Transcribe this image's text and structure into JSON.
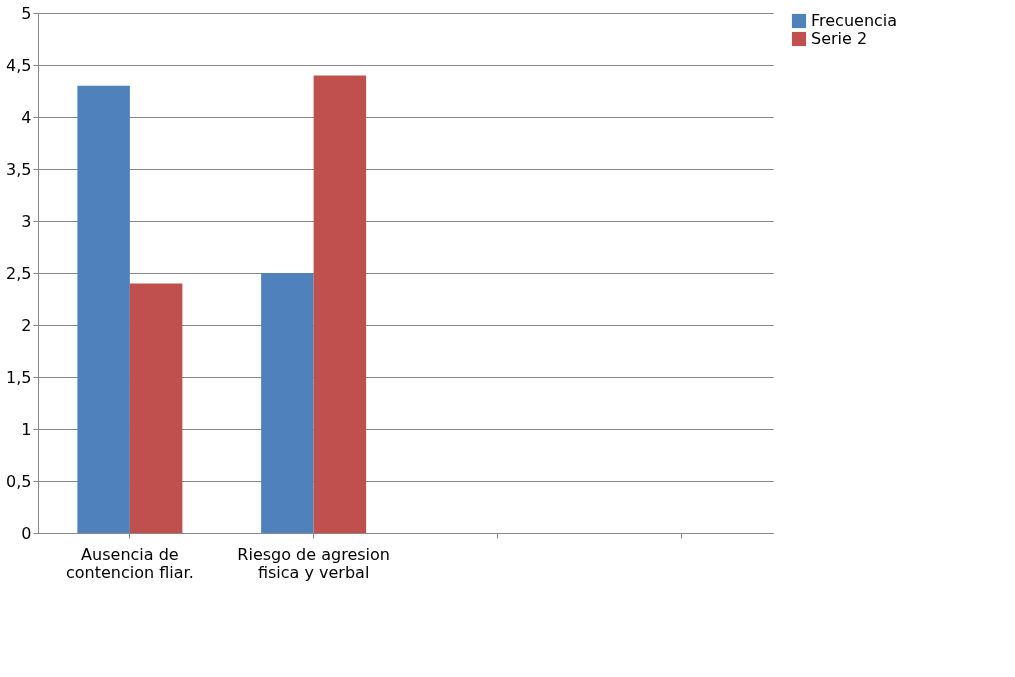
{
  "chart_data": {
    "type": "bar",
    "categories": [
      "Ausencia de contencion fliar.",
      "Riesgo de agresion fisica y verbal",
      null,
      null
    ],
    "series": [
      {
        "name": "Frecuencia",
        "color": "#4f81bd",
        "values": [
          4.3,
          2.5,
          null,
          null
        ]
      },
      {
        "name": "Serie 2",
        "color": "#c0504d",
        "values": [
          2.4,
          4.4,
          null,
          null
        ]
      }
    ],
    "ylim": [
      0,
      5
    ],
    "yticks": [
      0,
      {
        "value": 0.5,
        "label": "0,5"
      },
      1,
      {
        "value": 1.5,
        "label": "1,5"
      },
      2,
      {
        "value": 2.5,
        "label": "2,5"
      },
      3,
      {
        "value": 3.5,
        "label": "3,5"
      },
      4,
      {
        "value": 4.5,
        "label": "4,5"
      },
      5
    ],
    "grid": "y",
    "legend": "right"
  }
}
